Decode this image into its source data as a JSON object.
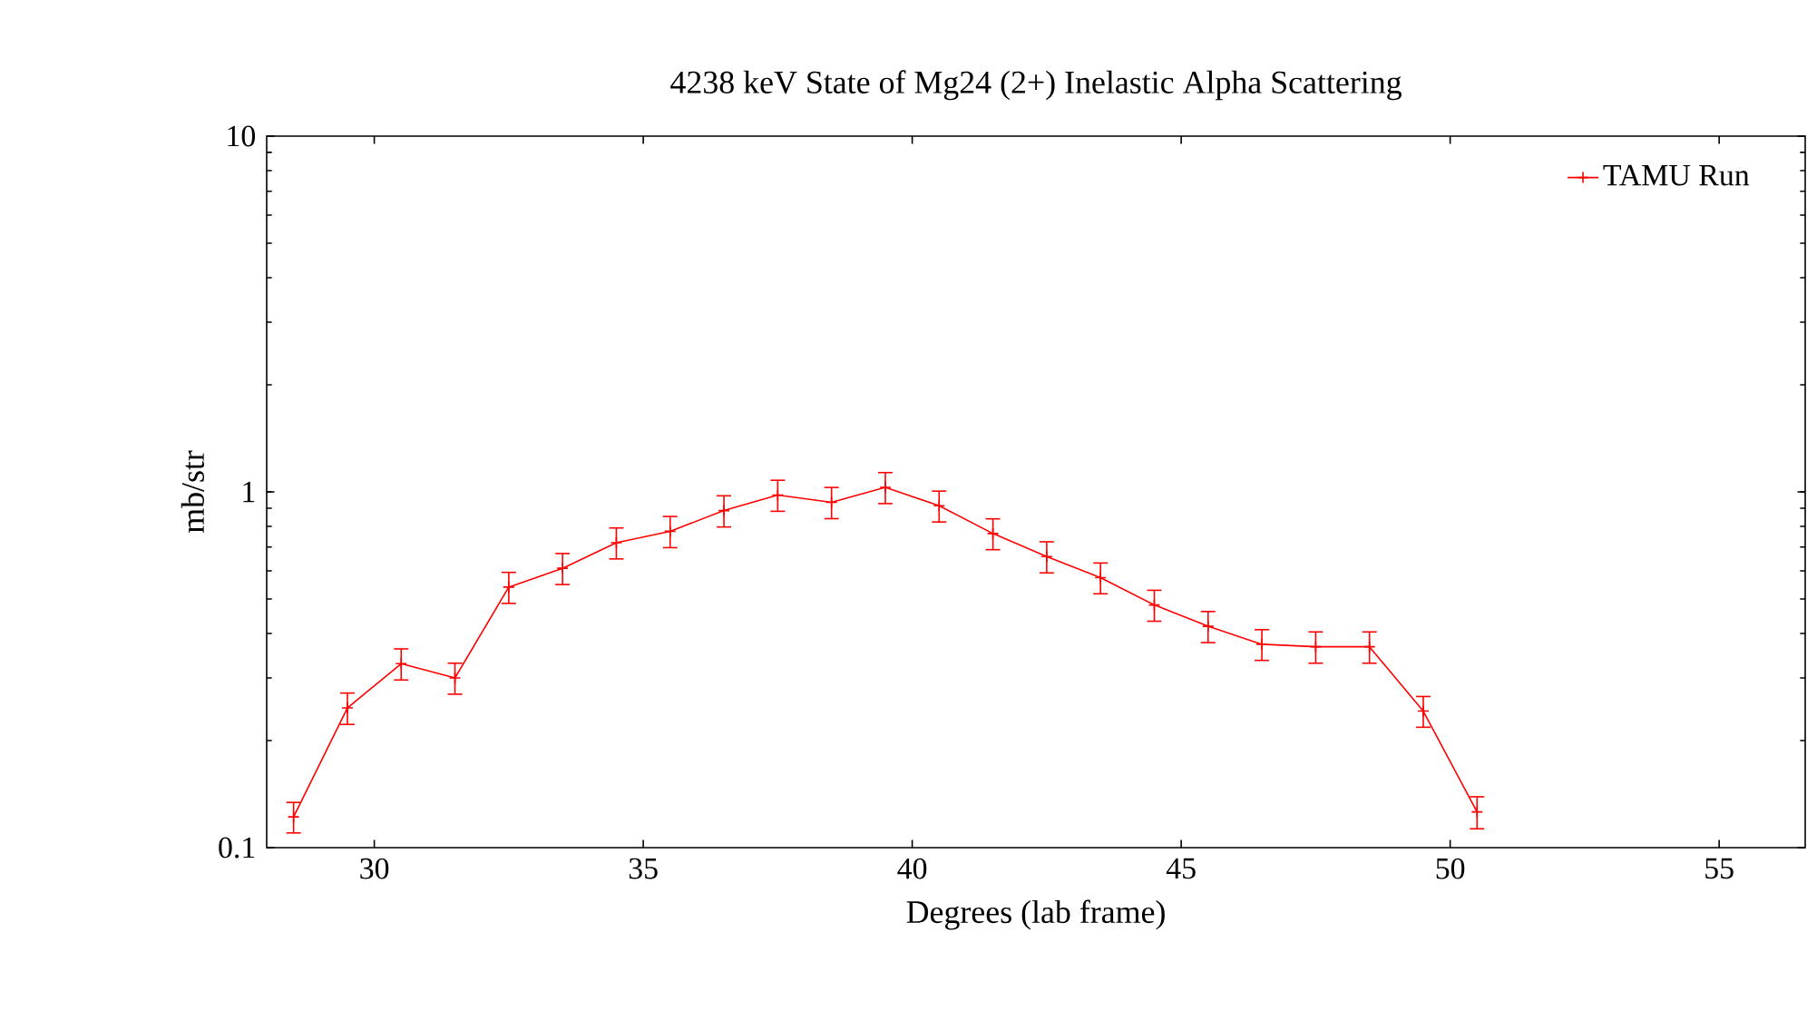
{
  "chart_data": {
    "type": "line",
    "title": "4238 keV State of Mg24 (2+) Inelastic Alpha Scattering",
    "xlabel": "Degrees (lab frame)",
    "ylabel": "mb/str",
    "x": [
      28.5,
      29.5,
      30.5,
      31.5,
      32.5,
      33.5,
      34.5,
      35.5,
      36.5,
      37.5,
      38.5,
      39.5,
      40.5,
      41.5,
      42.5,
      43.5,
      44.5,
      45.5,
      46.5,
      47.5,
      48.5,
      49.5,
      50.5
    ],
    "series": [
      {
        "name": "TAMU Run",
        "color": "#ff0000",
        "values": [
          0.122,
          0.247,
          0.329,
          0.3,
          0.54,
          0.61,
          0.72,
          0.775,
          0.886,
          0.98,
          0.935,
          1.03,
          0.914,
          0.764,
          0.658,
          0.574,
          0.481,
          0.419,
          0.373,
          0.367,
          0.367,
          0.242,
          0.126
        ],
        "errors": [
          0.012,
          0.025,
          0.033,
          0.03,
          0.054,
          0.061,
          0.072,
          0.078,
          0.089,
          0.098,
          0.094,
          0.103,
          0.091,
          0.076,
          0.066,
          0.057,
          0.048,
          0.042,
          0.037,
          0.037,
          0.037,
          0.024,
          0.013
        ]
      }
    ],
    "xlim": [
      28,
      56.6
    ],
    "ylim": [
      0.1,
      10
    ],
    "xticks": [
      30,
      35,
      40,
      45,
      50,
      55
    ],
    "yticks": [
      0.1,
      1,
      10
    ],
    "log": "y",
    "legend": "top right",
    "marker": "cross",
    "line_style": "solid",
    "grid": false
  }
}
